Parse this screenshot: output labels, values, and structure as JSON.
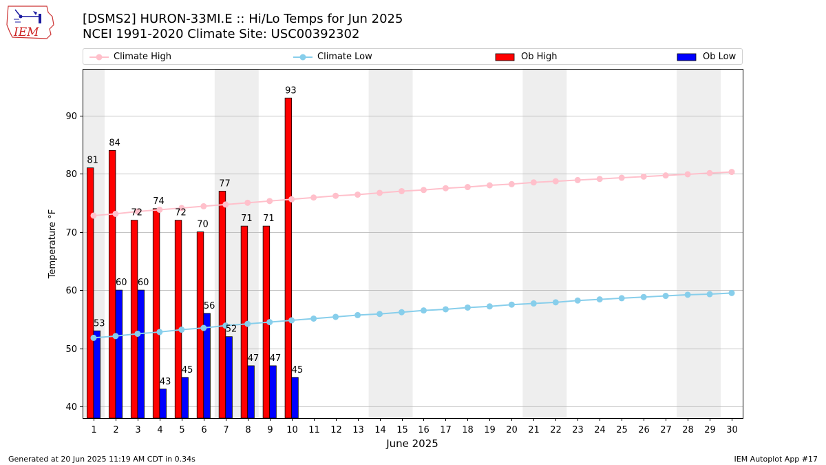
{
  "header": {
    "title_line1": "[DSMS2] HURON-33MI.E :: Hi/Lo Temps for Jun 2025",
    "title_line2": "NCEI 1991-2020 Climate Site: USC00392302",
    "logo_text": "IEM"
  },
  "legend": {
    "climate_high": "Climate High",
    "climate_low": "Climate Low",
    "ob_high": "Ob High",
    "ob_low": "Ob Low"
  },
  "footer": {
    "generated": "Generated at 20 Jun 2025 11:19 AM CDT in 0.34s",
    "app": "IEM Autoplot App #17"
  },
  "colors": {
    "ob_high": "#ff0000",
    "ob_low": "#0000ff",
    "climate_high": "#ffc0cb",
    "climate_low": "#87ceeb",
    "weekend_shade": "#eeeeee",
    "grid": "#b0b0b0"
  },
  "chart_data": {
    "type": "bar",
    "xlabel": "June 2025",
    "ylabel": "Temperature °F",
    "xlim": [
      0.5,
      30.5
    ],
    "ylim": [
      38,
      98
    ],
    "yticks": [
      40,
      50,
      60,
      70,
      80,
      90
    ],
    "grid": "horizontal",
    "legend_position": "top",
    "days": [
      1,
      2,
      3,
      4,
      5,
      6,
      7,
      8,
      9,
      10,
      11,
      12,
      13,
      14,
      15,
      16,
      17,
      18,
      19,
      20,
      21,
      22,
      23,
      24,
      25,
      26,
      27,
      28,
      29,
      30
    ],
    "weekend_shaded_days": [
      [
        1
      ],
      [
        7,
        8
      ],
      [
        14,
        15
      ],
      [
        21,
        22
      ],
      [
        28,
        29
      ]
    ],
    "ob_high": [
      81,
      84,
      72,
      74,
      72,
      70,
      77,
      71,
      71,
      93
    ],
    "ob_low": [
      53,
      60,
      60,
      43,
      45,
      56,
      52,
      47,
      47,
      45
    ],
    "climate_high": [
      72.8,
      73.1,
      73.5,
      73.8,
      74.1,
      74.4,
      74.7,
      75.0,
      75.3,
      75.6,
      75.9,
      76.2,
      76.4,
      76.7,
      77.0,
      77.2,
      77.5,
      77.7,
      78.0,
      78.2,
      78.5,
      78.7,
      78.9,
      79.1,
      79.3,
      79.5,
      79.7,
      79.9,
      80.1,
      80.3
    ],
    "climate_low": [
      51.8,
      52.1,
      52.5,
      52.8,
      53.2,
      53.5,
      53.9,
      54.2,
      54.5,
      54.8,
      55.1,
      55.4,
      55.7,
      55.9,
      56.2,
      56.5,
      56.7,
      57.0,
      57.2,
      57.5,
      57.7,
      57.9,
      58.2,
      58.4,
      58.6,
      58.8,
      59.0,
      59.2,
      59.3,
      59.5
    ]
  }
}
